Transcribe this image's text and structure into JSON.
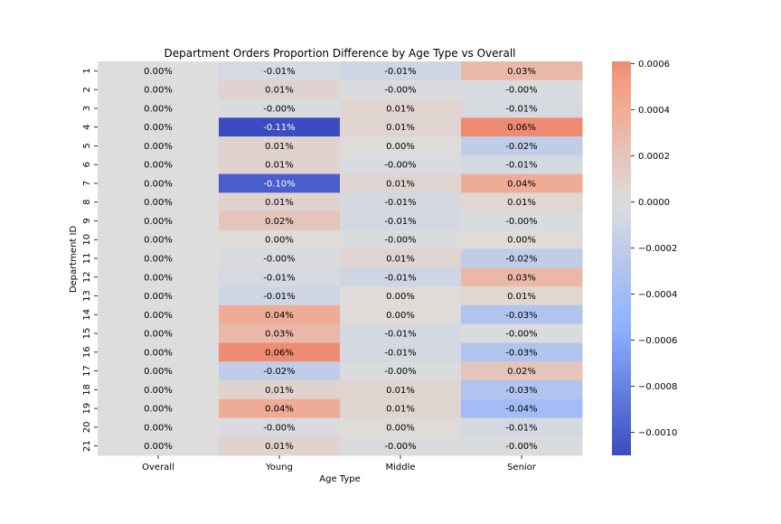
{
  "chart_data": {
    "type": "heatmap",
    "title": "Department Orders Proportion Difference by Age Type vs Overall",
    "xlabel": "Age Type",
    "ylabel": "Department ID",
    "columns": [
      "Overall",
      "Young",
      "Middle",
      "Senior"
    ],
    "rows": [
      "1",
      "2",
      "3",
      "4",
      "5",
      "6",
      "7",
      "8",
      "9",
      "10",
      "11",
      "12",
      "13",
      "14",
      "15",
      "16",
      "17",
      "18",
      "19",
      "20",
      "21"
    ],
    "colormap": "coolwarm",
    "center": 0,
    "vmin": -0.0011,
    "vmax": 0.00061,
    "colorbar_ticks": [
      0.0006,
      0.0004,
      0.0002,
      0.0,
      -0.0002,
      -0.0004,
      -0.0006,
      -0.0008,
      -0.001
    ],
    "colorbar_tick_labels": [
      "0.0006",
      "0.0004",
      "0.0002",
      "0.0000",
      "−0.0002",
      "−0.0004",
      "−0.0006",
      "−0.0008",
      "−0.0010"
    ],
    "values": [
      [
        0,
        -5e-05,
        -0.0001,
        0.0003
      ],
      [
        0,
        8e-05,
        -2e-05,
        -2e-05
      ],
      [
        0,
        -2e-05,
        7e-05,
        -5e-05
      ],
      [
        0,
        -0.0011,
        7e-05,
        0.0006
      ],
      [
        0,
        8e-05,
        2e-05,
        -0.0002
      ],
      [
        0,
        8e-05,
        -2e-05,
        -6e-05
      ],
      [
        0,
        -0.001,
        7e-05,
        0.0004
      ],
      [
        0,
        8e-05,
        -6e-05,
        6e-05
      ],
      [
        0,
        0.0002,
        -6e-05,
        -2e-05
      ],
      [
        0,
        2e-05,
        -2e-05,
        2e-05
      ],
      [
        0,
        -2e-05,
        7e-05,
        -0.0002
      ],
      [
        0,
        -5e-05,
        -0.0001,
        0.0003
      ],
      [
        0,
        -0.0001,
        2e-05,
        6e-05
      ],
      [
        0,
        0.0004,
        2e-05,
        -0.0003
      ],
      [
        0,
        0.0003,
        -6e-05,
        -2e-05
      ],
      [
        0,
        0.0006,
        -6e-05,
        -0.0003
      ],
      [
        0,
        -0.0002,
        -2e-05,
        0.0002
      ],
      [
        0,
        8e-05,
        7e-05,
        -0.0003
      ],
      [
        0,
        0.0004,
        7e-05,
        -0.0004
      ],
      [
        0,
        -2e-05,
        2e-05,
        -6e-05
      ],
      [
        0,
        8e-05,
        -2e-05,
        -2e-05
      ]
    ],
    "labels": [
      [
        "0.00%",
        "-0.01%",
        "-0.01%",
        "0.03%"
      ],
      [
        "0.00%",
        "0.01%",
        "-0.00%",
        "-0.00%"
      ],
      [
        "0.00%",
        "-0.00%",
        "0.01%",
        "-0.01%"
      ],
      [
        "0.00%",
        "-0.11%",
        "0.01%",
        "0.06%"
      ],
      [
        "0.00%",
        "0.01%",
        "0.00%",
        "-0.02%"
      ],
      [
        "0.00%",
        "0.01%",
        "-0.00%",
        "-0.01%"
      ],
      [
        "0.00%",
        "-0.10%",
        "0.01%",
        "0.04%"
      ],
      [
        "0.00%",
        "0.01%",
        "-0.01%",
        "0.01%"
      ],
      [
        "0.00%",
        "0.02%",
        "-0.01%",
        "-0.00%"
      ],
      [
        "0.00%",
        "0.00%",
        "-0.00%",
        "0.00%"
      ],
      [
        "0.00%",
        "-0.00%",
        "0.01%",
        "-0.02%"
      ],
      [
        "0.00%",
        "-0.01%",
        "-0.01%",
        "0.03%"
      ],
      [
        "0.00%",
        "-0.01%",
        "0.00%",
        "0.01%"
      ],
      [
        "0.00%",
        "0.04%",
        "0.00%",
        "-0.03%"
      ],
      [
        "0.00%",
        "0.03%",
        "-0.01%",
        "-0.00%"
      ],
      [
        "0.00%",
        "0.06%",
        "-0.01%",
        "-0.03%"
      ],
      [
        "0.00%",
        "-0.02%",
        "-0.00%",
        "0.02%"
      ],
      [
        "0.00%",
        "0.01%",
        "0.01%",
        "-0.03%"
      ],
      [
        "0.00%",
        "0.04%",
        "0.01%",
        "-0.04%"
      ],
      [
        "0.00%",
        "-0.00%",
        "0.00%",
        "-0.01%"
      ],
      [
        "0.00%",
        "0.01%",
        "-0.00%",
        "-0.00%"
      ]
    ]
  }
}
